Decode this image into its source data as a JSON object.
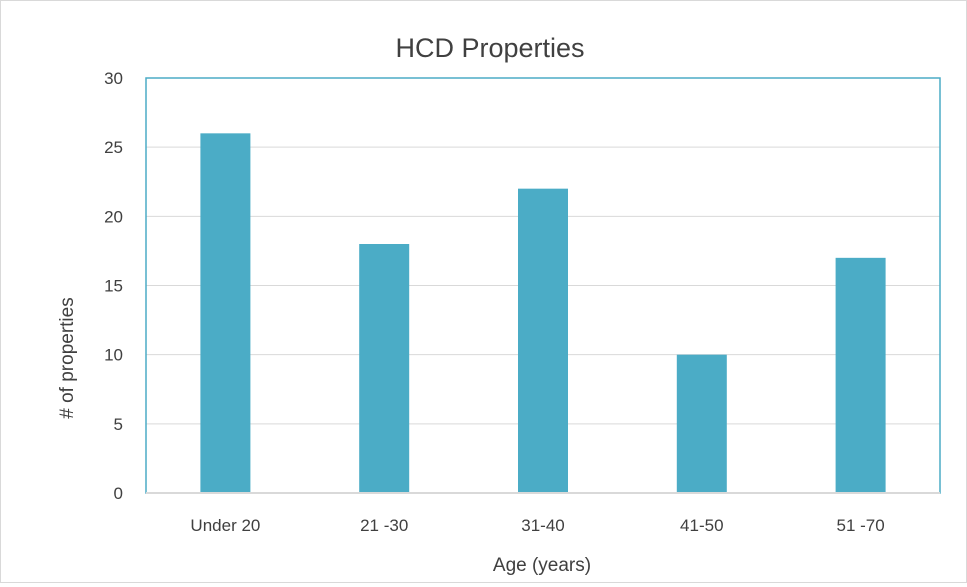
{
  "chart_data": {
    "type": "bar",
    "title": "HCD Properties",
    "xlabel": "Age (years)",
    "ylabel": "# of properties",
    "categories": [
      "Under 20",
      "21 -30",
      "31-40",
      "41-50",
      "51 -70"
    ],
    "values": [
      26,
      18,
      22,
      10,
      17
    ],
    "ylim": [
      0,
      30
    ],
    "yticks": [
      "0",
      "5",
      "10",
      "15",
      "20",
      "25",
      "30"
    ],
    "grid": true,
    "legend": "none",
    "colors": {
      "bar": "#4bacc6",
      "gridline": "#d9d9d9",
      "plot_border": "#4bacc6",
      "text": "#404040"
    }
  }
}
